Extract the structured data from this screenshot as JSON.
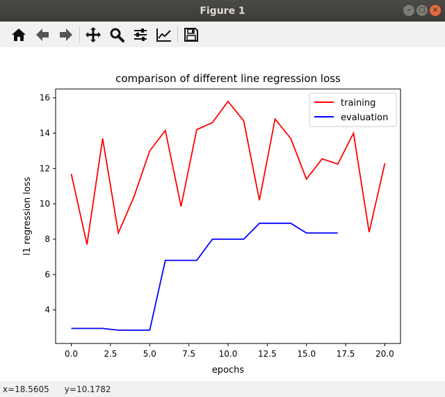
{
  "window": {
    "title": "Figure 1"
  },
  "toolbar": {
    "buttons": [
      {
        "name": "home-button",
        "icon": "home-icon"
      },
      {
        "name": "back-button",
        "icon": "arrow-left-icon"
      },
      {
        "name": "forward-button",
        "icon": "arrow-right-icon"
      },
      {
        "name": "pan-button",
        "icon": "move-icon"
      },
      {
        "name": "zoom-button",
        "icon": "magnifier-icon"
      },
      {
        "name": "configure-subplots-button",
        "icon": "sliders-icon"
      },
      {
        "name": "edit-axis-button",
        "icon": "line-chart-icon"
      },
      {
        "name": "save-button",
        "icon": "floppy-disk-icon"
      }
    ]
  },
  "status": {
    "x_readout": "x=18.5605",
    "y_readout": "y=10.1782"
  },
  "colors": {
    "training": "#ff0000",
    "evaluation": "#0000ff"
  },
  "chart_data": {
    "type": "line",
    "title": "comparison of different line regression loss",
    "xlabel": "epochs",
    "ylabel": "l1 regression loss",
    "xlim": [
      -1,
      21
    ],
    "ylim": [
      2.1,
      16.5
    ],
    "xticks": [
      0.0,
      2.5,
      5.0,
      7.5,
      10.0,
      12.5,
      15.0,
      17.5,
      20.0
    ],
    "xtick_labels": [
      "0.0",
      "2.5",
      "5.0",
      "7.5",
      "10.0",
      "12.5",
      "15.0",
      "17.5",
      "20.0"
    ],
    "yticks": [
      4,
      6,
      8,
      10,
      12,
      14,
      16
    ],
    "ytick_labels": [
      "4",
      "6",
      "8",
      "10",
      "12",
      "14",
      "16"
    ],
    "grid": false,
    "legend_position": "top-right",
    "series": [
      {
        "name": "training",
        "color": "#ff0000",
        "x": [
          0,
          1,
          2,
          3,
          4,
          5,
          6,
          7,
          8,
          9,
          10,
          11,
          12,
          13,
          14,
          15,
          16,
          17,
          18,
          19,
          20
        ],
        "y": [
          11.7,
          7.7,
          13.7,
          8.35,
          10.4,
          13.0,
          14.15,
          9.85,
          14.2,
          14.6,
          15.8,
          14.7,
          10.2,
          14.8,
          13.7,
          11.4,
          12.55,
          12.25,
          14.0,
          8.4,
          12.3
        ]
      },
      {
        "name": "evaluation",
        "color": "#0000ff",
        "x": [
          0,
          1,
          2,
          3,
          4,
          5,
          6,
          7,
          8,
          9,
          10,
          11,
          12,
          13,
          14,
          15,
          16,
          17
        ],
        "y": [
          2.95,
          2.95,
          2.95,
          2.85,
          2.85,
          2.85,
          6.8,
          6.8,
          6.8,
          8.0,
          8.0,
          8.0,
          8.9,
          8.9,
          8.9,
          8.35,
          8.35,
          8.35
        ]
      }
    ]
  }
}
